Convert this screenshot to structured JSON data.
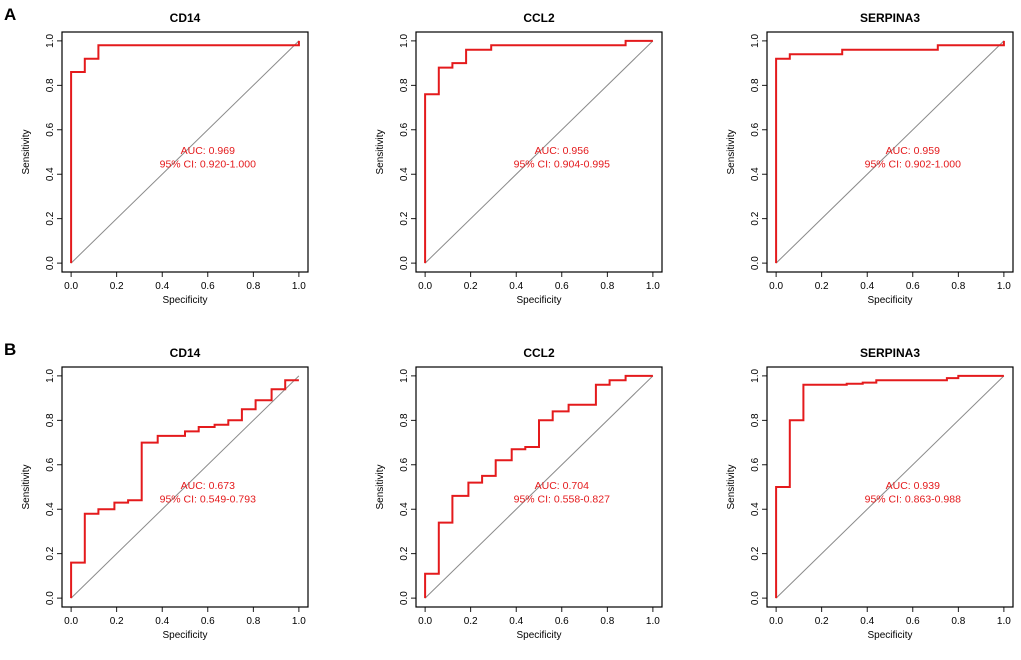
{
  "figure": {
    "panel_labels": [
      "A",
      "B"
    ],
    "colors": {
      "roc": "#e41a1c",
      "auc_text": "#e41a1c",
      "diagonal": "#8a8a8a",
      "axis": "#000000"
    }
  },
  "chart_data": [
    {
      "type": "line",
      "panel": "A",
      "title": "CD14",
      "xlabel": "Specificity",
      "ylabel": "Sensitivity",
      "xlim": [
        0,
        1
      ],
      "ylim": [
        0,
        1
      ],
      "xticks": [
        "0.0",
        "0.2",
        "0.4",
        "0.6",
        "0.8",
        "1.0"
      ],
      "yticks": [
        "0.0",
        "0.2",
        "0.4",
        "0.6",
        "0.8",
        "1.0"
      ],
      "auc_label": "AUC: 0.969",
      "ci_label": "95% CI: 0.920-1.000",
      "series": [
        {
          "name": "ROC",
          "x": [
            0,
            0,
            0.06,
            0.06,
            0.12,
            0.12,
            1.0,
            1.0
          ],
          "y": [
            0,
            0.86,
            0.86,
            0.92,
            0.92,
            0.98,
            0.98,
            1.0
          ]
        }
      ]
    },
    {
      "type": "line",
      "panel": "A",
      "title": "CCL2",
      "xlabel": "Specificity",
      "ylabel": "Sensitivity",
      "xlim": [
        0,
        1
      ],
      "ylim": [
        0,
        1
      ],
      "xticks": [
        "0.0",
        "0.2",
        "0.4",
        "0.6",
        "0.8",
        "1.0"
      ],
      "yticks": [
        "0.0",
        "0.2",
        "0.4",
        "0.6",
        "0.8",
        "1.0"
      ],
      "auc_label": "AUC: 0.956",
      "ci_label": "95% CI: 0.904-0.995",
      "series": [
        {
          "name": "ROC",
          "x": [
            0,
            0,
            0.06,
            0.06,
            0.12,
            0.12,
            0.18,
            0.18,
            0.29,
            0.29,
            0.88,
            0.88,
            1.0
          ],
          "y": [
            0,
            0.76,
            0.76,
            0.88,
            0.88,
            0.9,
            0.9,
            0.96,
            0.96,
            0.98,
            0.98,
            1.0,
            1.0
          ]
        }
      ]
    },
    {
      "type": "line",
      "panel": "A",
      "title": "SERPINA3",
      "xlabel": "Specificity",
      "ylabel": "Sensitivity",
      "xlim": [
        0,
        1
      ],
      "ylim": [
        0,
        1
      ],
      "xticks": [
        "0.0",
        "0.2",
        "0.4",
        "0.6",
        "0.8",
        "1.0"
      ],
      "yticks": [
        "0.0",
        "0.2",
        "0.4",
        "0.6",
        "0.8",
        "1.0"
      ],
      "auc_label": "AUC: 0.959",
      "ci_label": "95% CI: 0.902-1.000",
      "series": [
        {
          "name": "ROC",
          "x": [
            0,
            0,
            0.06,
            0.06,
            0.29,
            0.29,
            0.71,
            0.71,
            1.0,
            1.0
          ],
          "y": [
            0,
            0.92,
            0.92,
            0.94,
            0.94,
            0.96,
            0.96,
            0.98,
            0.98,
            1.0
          ]
        }
      ]
    },
    {
      "type": "line",
      "panel": "B",
      "title": "CD14",
      "xlabel": "Specificity",
      "ylabel": "Sensitivity",
      "xlim": [
        0,
        1
      ],
      "ylim": [
        0,
        1
      ],
      "xticks": [
        "0.0",
        "0.2",
        "0.4",
        "0.6",
        "0.8",
        "1.0"
      ],
      "yticks": [
        "0.0",
        "0.2",
        "0.4",
        "0.6",
        "0.8",
        "1.0"
      ],
      "auc_label": "AUC: 0.673",
      "ci_label": "95% CI: 0.549-0.793",
      "series": [
        {
          "name": "ROC",
          "x": [
            0,
            0,
            0.06,
            0.06,
            0.12,
            0.12,
            0.19,
            0.19,
            0.25,
            0.25,
            0.31,
            0.31,
            0.38,
            0.38,
            0.5,
            0.5,
            0.56,
            0.56,
            0.63,
            0.63,
            0.69,
            0.69,
            0.75,
            0.75,
            0.81,
            0.81,
            0.88,
            0.88,
            0.94,
            0.94,
            1.0
          ],
          "y": [
            0,
            0.16,
            0.16,
            0.38,
            0.38,
            0.4,
            0.4,
            0.43,
            0.43,
            0.44,
            0.44,
            0.7,
            0.7,
            0.73,
            0.73,
            0.75,
            0.75,
            0.77,
            0.77,
            0.78,
            0.78,
            0.8,
            0.8,
            0.85,
            0.85,
            0.89,
            0.89,
            0.94,
            0.94,
            0.98,
            0.98
          ]
        }
      ]
    },
    {
      "type": "line",
      "panel": "B",
      "title": "CCL2",
      "xlabel": "Specificity",
      "ylabel": "Sensitivity",
      "xlim": [
        0,
        1
      ],
      "ylim": [
        0,
        1
      ],
      "xticks": [
        "0.0",
        "0.2",
        "0.4",
        "0.6",
        "0.8",
        "1.0"
      ],
      "yticks": [
        "0.0",
        "0.2",
        "0.4",
        "0.6",
        "0.8",
        "1.0"
      ],
      "auc_label": "AUC: 0.704",
      "ci_label": "95% CI: 0.558-0.827",
      "series": [
        {
          "name": "ROC",
          "x": [
            0,
            0,
            0.06,
            0.06,
            0.12,
            0.12,
            0.19,
            0.19,
            0.25,
            0.25,
            0.31,
            0.31,
            0.38,
            0.38,
            0.44,
            0.44,
            0.5,
            0.5,
            0.56,
            0.56,
            0.63,
            0.63,
            0.75,
            0.75,
            0.81,
            0.81,
            0.88,
            0.88,
            1.0
          ],
          "y": [
            0,
            0.11,
            0.11,
            0.34,
            0.34,
            0.46,
            0.46,
            0.52,
            0.52,
            0.55,
            0.55,
            0.62,
            0.62,
            0.67,
            0.67,
            0.68,
            0.68,
            0.8,
            0.8,
            0.84,
            0.84,
            0.87,
            0.87,
            0.96,
            0.96,
            0.98,
            0.98,
            1.0,
            1.0
          ]
        }
      ]
    },
    {
      "type": "line",
      "panel": "B",
      "title": "SERPINA3",
      "xlabel": "Specificity",
      "ylabel": "Sensitivity",
      "xlim": [
        0,
        1
      ],
      "ylim": [
        0,
        1
      ],
      "xticks": [
        "0.0",
        "0.2",
        "0.4",
        "0.6",
        "0.8",
        "1.0"
      ],
      "yticks": [
        "0.0",
        "0.2",
        "0.4",
        "0.6",
        "0.8",
        "1.0"
      ],
      "auc_label": "AUC: 0.939",
      "ci_label": "95% CI: 0.863-0.988",
      "series": [
        {
          "name": "ROC",
          "x": [
            0,
            0,
            0.06,
            0.06,
            0.12,
            0.12,
            0.31,
            0.31,
            0.38,
            0.38,
            0.44,
            0.44,
            0.75,
            0.75,
            0.8,
            0.8,
            1.0
          ],
          "y": [
            0,
            0.5,
            0.5,
            0.8,
            0.8,
            0.96,
            0.96,
            0.965,
            0.965,
            0.97,
            0.97,
            0.98,
            0.98,
            0.99,
            0.99,
            1.0,
            1.0
          ]
        }
      ]
    }
  ]
}
